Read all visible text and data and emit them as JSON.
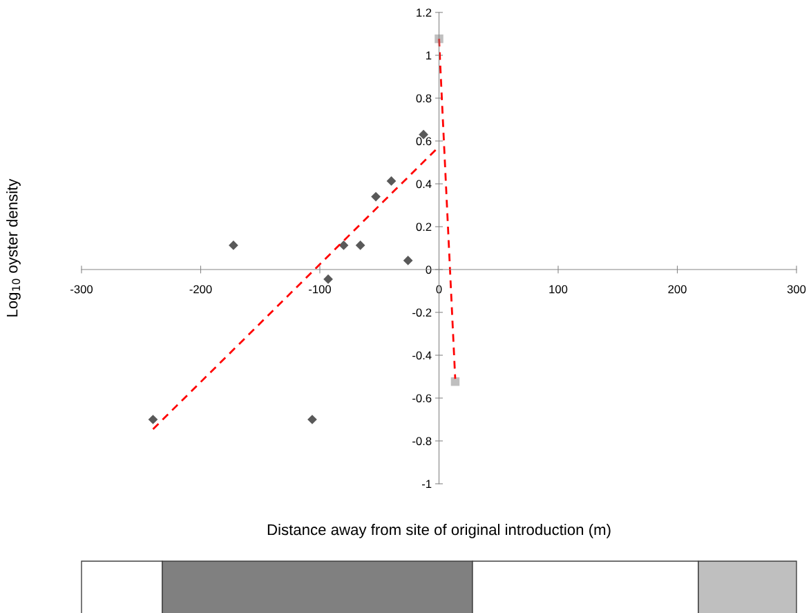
{
  "chart_data": {
    "type": "scatter",
    "xlabel": "Distance away from site of original introduction (m)",
    "ylabel": "Log$_{10}$ oyster density",
    "xlim": [
      -300,
      300
    ],
    "xticks": [
      -300,
      -200,
      -100,
      0,
      100,
      200,
      300
    ],
    "ylim": [
      -1,
      1.2
    ],
    "yticks": [
      -1,
      -0.8,
      -0.6,
      -0.4,
      -0.2,
      0,
      0.2,
      0.4,
      0.6,
      0.8,
      1,
      1.2
    ],
    "grid": false,
    "legend": false,
    "series": [
      {
        "marker": "diamond",
        "color": "#595959",
        "x": [
          -240,
          -172.5,
          -106.4,
          -93,
          -80,
          -66,
          -53,
          -40,
          -26,
          -13
        ],
        "values": [
          -0.7,
          0.113,
          -0.7,
          -0.045,
          0.113,
          0.113,
          0.34,
          0.413,
          0.042,
          0.63
        ]
      },
      {
        "marker": "square",
        "color": "#bfbfbf",
        "x": [
          0,
          13.6
        ],
        "values": [
          1.077,
          -0.523
        ]
      },
      {
        "type": "line",
        "line_style": "dashed",
        "marker": "none",
        "color": "#ff0000",
        "x": [
          -240,
          0
        ],
        "values": [
          -0.745,
          0.574
        ]
      },
      {
        "type": "line",
        "line_style": "dashed",
        "marker": "none",
        "color": "#ff0000",
        "x": [
          0,
          13.6
        ],
        "values": [
          1.077,
          -0.51
        ]
      }
    ]
  }
}
